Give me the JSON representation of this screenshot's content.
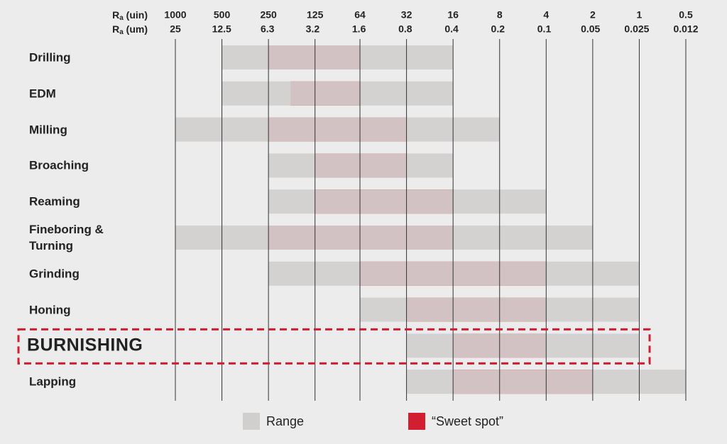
{
  "chart_data": {
    "type": "range-bar",
    "x_label": "Ra (uin)",
    "x2_label": "Ra (um)",
    "xscale": "log",
    "xlim": [
      1000,
      0.5
    ],
    "xticks": [
      1000,
      500,
      250,
      125,
      64,
      32,
      16,
      8,
      4,
      2,
      1,
      0.5
    ],
    "x2lim": [
      25,
      0.012
    ],
    "x2ticks": [
      25,
      12.5,
      6.3,
      3.2,
      1.6,
      0.8,
      0.4,
      0.2,
      0.1,
      0.05,
      0.025,
      0.012
    ],
    "grid": true,
    "categories": [
      "Drilling",
      "EDM",
      "Milling",
      "Broaching",
      "Reaming",
      "Fineboring & Turning",
      "Grinding",
      "Honing",
      "BURNISHING",
      "Lapping"
    ],
    "highlight": 8,
    "series": [
      {
        "name": "Range",
        "color": "#d1cfce",
        "values": [
          [
            500,
            16
          ],
          [
            500,
            16
          ],
          [
            1000,
            8
          ],
          [
            250,
            16
          ],
          [
            250,
            4
          ],
          [
            1000,
            2
          ],
          [
            250,
            1
          ],
          [
            64,
            1
          ],
          [
            32,
            1
          ],
          [
            32,
            0.5
          ]
        ]
      },
      {
        "name": "“Sweet spot”",
        "color": "#d11f31",
        "values": [
          [
            250,
            64
          ],
          [
            180,
            64
          ],
          [
            250,
            32
          ],
          [
            125,
            32
          ],
          [
            125,
            16
          ],
          [
            250,
            16
          ],
          [
            64,
            4
          ],
          [
            32,
            4
          ],
          [
            16,
            4
          ],
          [
            16,
            2
          ]
        ]
      }
    ]
  }
}
